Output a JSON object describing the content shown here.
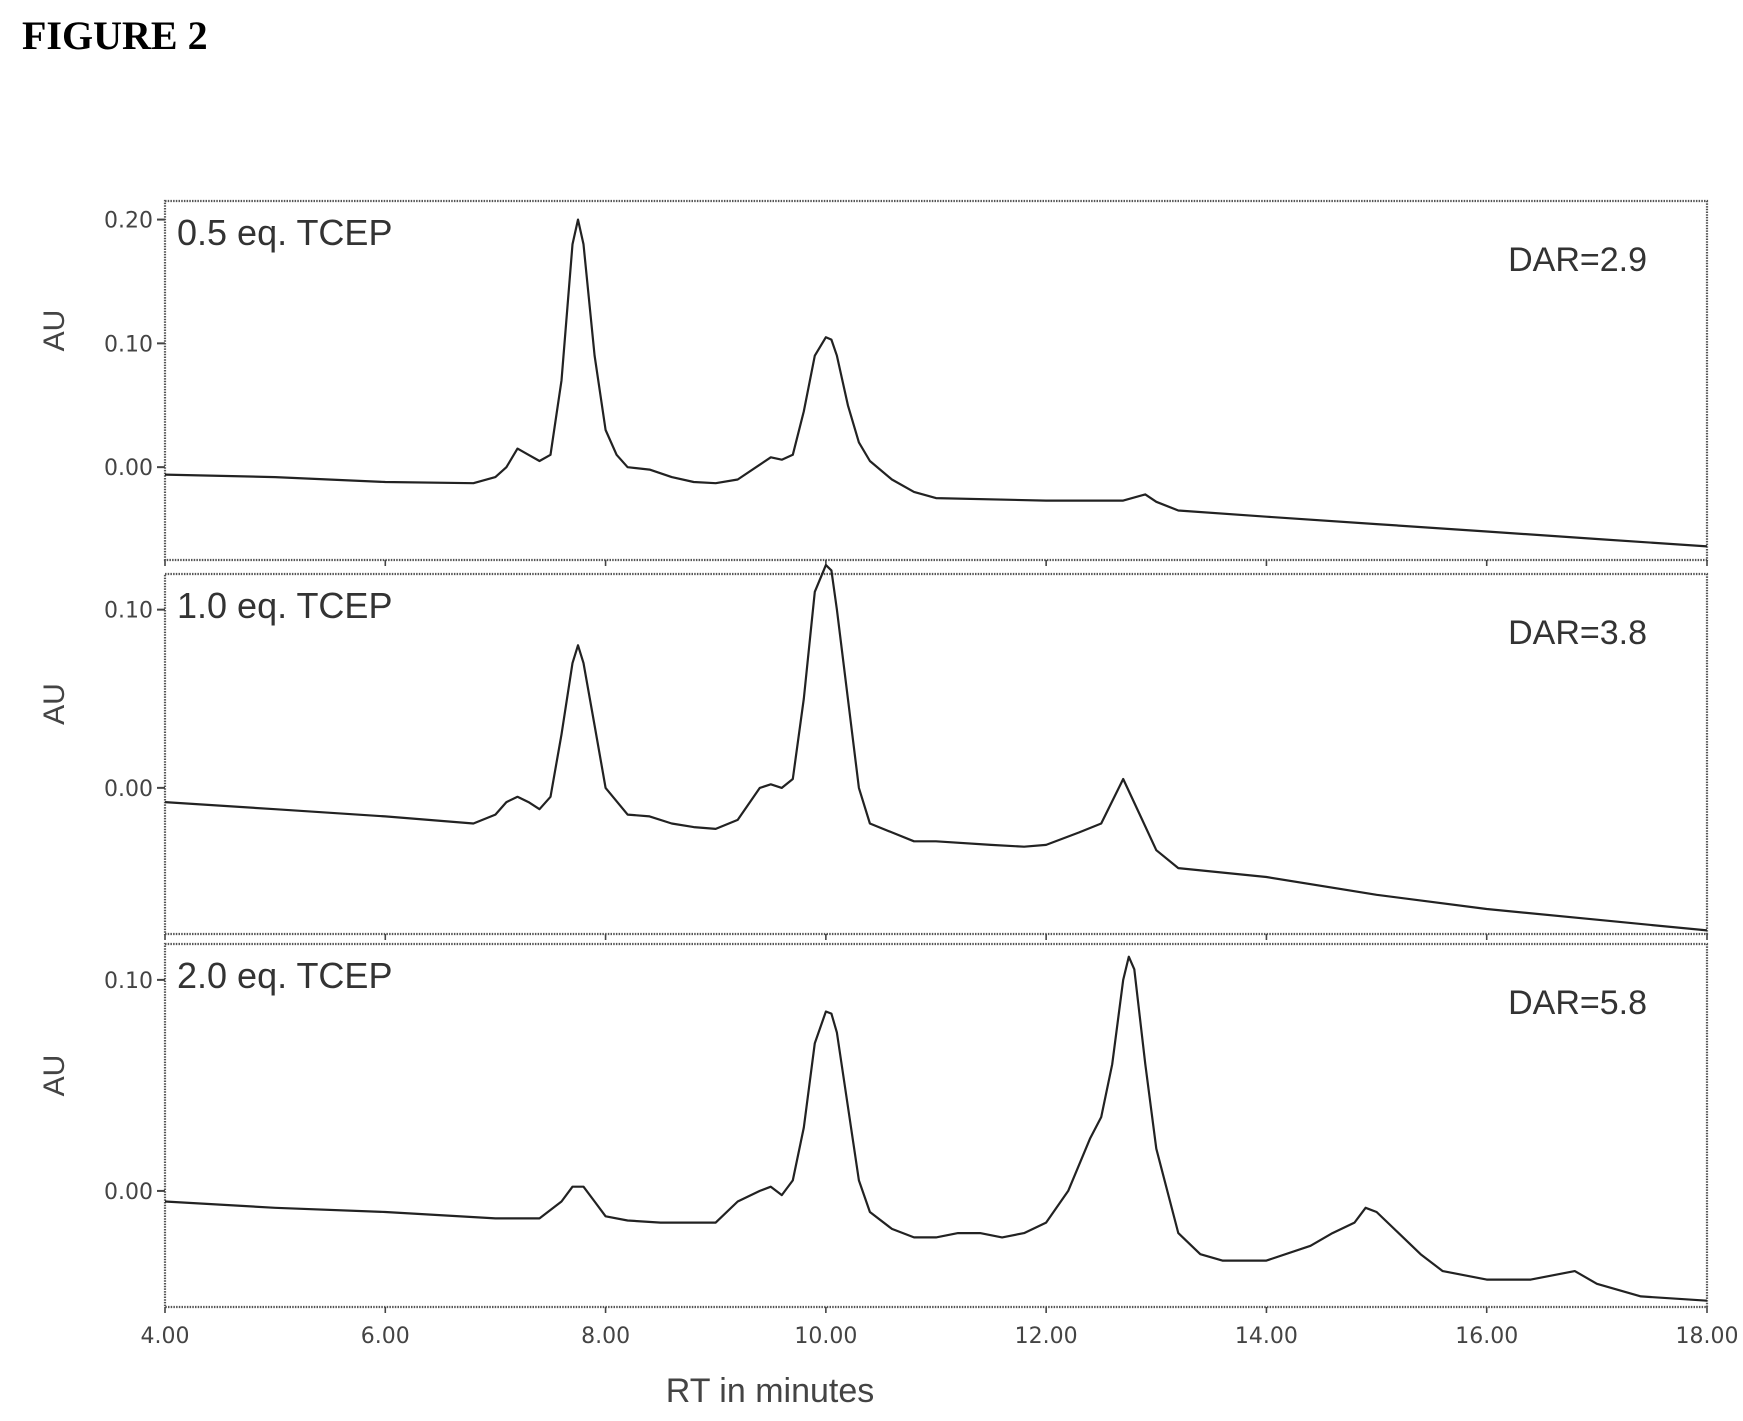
{
  "figure_title": "FIGURE 2",
  "chart_data": [
    {
      "type": "line",
      "panel_label": "0.5 eq. TCEP",
      "annotation": "DAR=2.9",
      "ylabel": "AU",
      "xlabel": "RT in minutes",
      "xlim": [
        4.0,
        18.0
      ],
      "ylim": [
        -0.075,
        0.215
      ],
      "yticks": [
        0.0,
        0.1,
        0.2
      ],
      "ytick_labels": [
        "0.00",
        "0.10",
        "0.20"
      ],
      "series": [
        {
          "x": [
            4.0,
            5.0,
            6.0,
            6.8,
            7.0,
            7.1,
            7.2,
            7.3,
            7.4,
            7.5,
            7.6,
            7.7,
            7.75,
            7.8,
            7.9,
            8.0,
            8.1,
            8.2,
            8.4,
            8.6,
            8.8,
            9.0,
            9.2,
            9.4,
            9.5,
            9.6,
            9.7,
            9.8,
            9.9,
            10.0,
            10.05,
            10.1,
            10.2,
            10.3,
            10.4,
            10.6,
            10.8,
            11.0,
            12.0,
            12.7,
            12.9,
            13.0,
            13.2,
            14.0,
            15.0,
            16.0,
            17.0,
            18.0
          ],
          "y": [
            -0.006,
            -0.008,
            -0.012,
            -0.013,
            -0.008,
            0.0,
            0.015,
            0.01,
            0.005,
            0.01,
            0.07,
            0.18,
            0.2,
            0.18,
            0.09,
            0.03,
            0.01,
            0.0,
            -0.002,
            -0.008,
            -0.012,
            -0.013,
            -0.01,
            0.002,
            0.008,
            0.006,
            0.01,
            0.045,
            0.09,
            0.105,
            0.103,
            0.09,
            0.05,
            0.02,
            0.005,
            -0.01,
            -0.02,
            -0.025,
            -0.027,
            -0.027,
            -0.022,
            -0.028,
            -0.035,
            -0.04,
            -0.046,
            -0.052,
            -0.058,
            -0.064
          ]
        }
      ]
    },
    {
      "type": "line",
      "panel_label": "1.0 eq. TCEP",
      "annotation": "DAR=3.8",
      "ylabel": "AU",
      "xlabel": "RT in minutes",
      "xlim": [
        4.0,
        18.0
      ],
      "ylim": [
        -0.082,
        0.12
      ],
      "yticks": [
        0.0,
        0.1
      ],
      "ytick_labels": [
        "0.00",
        "0.10"
      ],
      "series": [
        {
          "x": [
            4.0,
            5.0,
            6.0,
            6.8,
            7.0,
            7.1,
            7.2,
            7.3,
            7.4,
            7.5,
            7.6,
            7.7,
            7.75,
            7.8,
            7.9,
            8.0,
            8.2,
            8.4,
            8.6,
            8.8,
            9.0,
            9.2,
            9.4,
            9.5,
            9.6,
            9.7,
            9.8,
            9.9,
            10.0,
            10.05,
            10.1,
            10.2,
            10.3,
            10.4,
            10.6,
            10.8,
            11.0,
            11.5,
            11.8,
            12.0,
            12.3,
            12.5,
            12.7,
            12.85,
            13.0,
            13.2,
            14.0,
            15.0,
            16.0,
            17.0,
            18.0
          ],
          "y": [
            -0.008,
            -0.012,
            -0.016,
            -0.02,
            -0.015,
            -0.008,
            -0.005,
            -0.008,
            -0.012,
            -0.005,
            0.03,
            0.07,
            0.08,
            0.07,
            0.035,
            0.0,
            -0.015,
            -0.016,
            -0.02,
            -0.022,
            -0.023,
            -0.018,
            0.0,
            0.002,
            0.0,
            0.005,
            0.05,
            0.11,
            0.125,
            0.122,
            0.1,
            0.05,
            0.0,
            -0.02,
            -0.025,
            -0.03,
            -0.03,
            -0.032,
            -0.033,
            -0.032,
            -0.025,
            -0.02,
            0.005,
            -0.015,
            -0.035,
            -0.045,
            -0.05,
            -0.06,
            -0.068,
            -0.074,
            -0.08
          ]
        }
      ]
    },
    {
      "type": "line",
      "panel_label": "2.0 eq. TCEP",
      "annotation": "DAR=5.8",
      "ylabel": "AU",
      "xlabel": "RT in minutes",
      "xlim": [
        4.0,
        18.0
      ],
      "ylim": [
        -0.055,
        0.117
      ],
      "yticks": [
        0.0,
        0.1
      ],
      "ytick_labels": [
        "0.00",
        "0.10"
      ],
      "xticks": [
        4,
        6,
        8,
        10,
        12,
        14,
        16,
        18
      ],
      "xtick_labels": [
        "4.00",
        "6.00",
        "8.00",
        "10.00",
        "12.00",
        "14.00",
        "16.00",
        "18.00"
      ],
      "series": [
        {
          "x": [
            4.0,
            5.0,
            6.0,
            7.0,
            7.4,
            7.6,
            7.7,
            7.8,
            7.9,
            8.0,
            8.2,
            8.5,
            9.0,
            9.2,
            9.4,
            9.5,
            9.6,
            9.7,
            9.8,
            9.9,
            10.0,
            10.05,
            10.1,
            10.2,
            10.3,
            10.4,
            10.6,
            10.8,
            11.0,
            11.2,
            11.4,
            11.6,
            11.8,
            12.0,
            12.2,
            12.4,
            12.5,
            12.6,
            12.7,
            12.75,
            12.8,
            12.9,
            13.0,
            13.2,
            13.4,
            13.6,
            14.0,
            14.4,
            14.6,
            14.8,
            14.9,
            15.0,
            15.2,
            15.4,
            15.6,
            16.0,
            16.4,
            16.6,
            16.8,
            17.0,
            17.4,
            18.0
          ],
          "y": [
            -0.005,
            -0.008,
            -0.01,
            -0.013,
            -0.013,
            -0.005,
            0.002,
            0.002,
            -0.005,
            -0.012,
            -0.014,
            -0.015,
            -0.015,
            -0.005,
            0.0,
            0.002,
            -0.002,
            0.005,
            0.03,
            0.07,
            0.085,
            0.084,
            0.075,
            0.04,
            0.005,
            -0.01,
            -0.018,
            -0.022,
            -0.022,
            -0.02,
            -0.02,
            -0.022,
            -0.02,
            -0.015,
            0.0,
            0.025,
            0.035,
            0.06,
            0.1,
            0.111,
            0.105,
            0.06,
            0.02,
            -0.02,
            -0.03,
            -0.033,
            -0.033,
            -0.026,
            -0.02,
            -0.015,
            -0.008,
            -0.01,
            -0.02,
            -0.03,
            -0.038,
            -0.042,
            -0.042,
            -0.04,
            -0.038,
            -0.044,
            -0.05,
            -0.052
          ]
        }
      ]
    }
  ]
}
